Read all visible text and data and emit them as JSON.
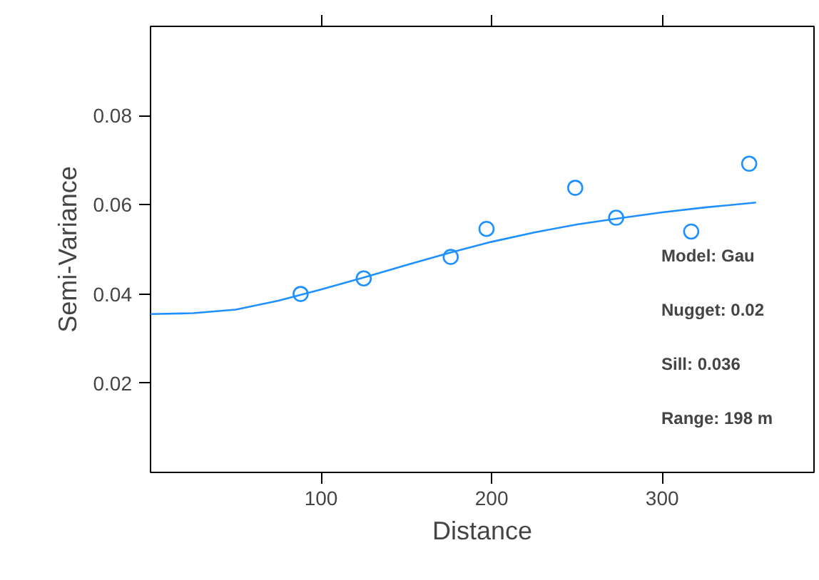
{
  "chart_data": {
    "type": "scatter",
    "xlabel": "Distance",
    "ylabel": "Semi-Variance",
    "xlim": [
      0,
      389
    ],
    "ylim": [
      0,
      0.1
    ],
    "xticks": [
      100,
      200,
      300
    ],
    "yticks": [
      0.02,
      0.04,
      0.06,
      0.08
    ],
    "grid": false,
    "marker": "circle",
    "annotations": [
      "Model: Gau",
      "Nugget: 0.02",
      "Sill: 0.036",
      "Range: 198 m"
    ],
    "series": [
      {
        "color": "#1e90ff",
        "x": [
          88,
          125,
          176,
          197,
          249,
          273,
          317,
          351
        ],
        "values": [
          0.04,
          0.0435,
          0.0483,
          0.0546,
          0.0638,
          0.0571,
          0.054,
          0.0692
        ]
      },
      {
        "type": "line",
        "marker": "none",
        "color": "#1e90ff",
        "line_style": "solid",
        "x": [
          0,
          25,
          50,
          75,
          100,
          125,
          150,
          175,
          200,
          225,
          250,
          275,
          300,
          325,
          355
        ],
        "values": [
          0.0355,
          0.0357,
          0.0365,
          0.0385,
          0.041,
          0.0437,
          0.0465,
          0.0492,
          0.0517,
          0.0538,
          0.0556,
          0.057,
          0.0583,
          0.0594,
          0.0605
        ]
      }
    ]
  }
}
